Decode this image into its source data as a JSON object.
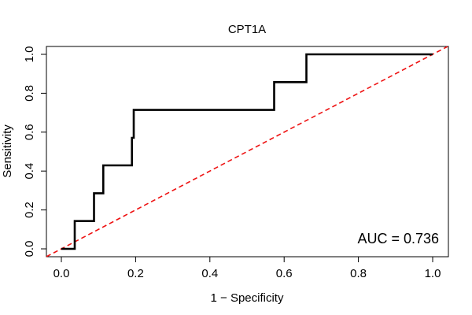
{
  "chart_data": {
    "type": "line",
    "title": "CPT1A",
    "xlabel": "1 − Specificity",
    "ylabel": "Sensitivity",
    "xlim": [
      0,
      1
    ],
    "ylim": [
      0,
      1
    ],
    "xticks": [
      "0.0",
      "0.2",
      "0.4",
      "0.6",
      "0.8",
      "1.0"
    ],
    "yticks": [
      "0.0",
      "0.2",
      "0.4",
      "0.6",
      "0.8",
      "1.0"
    ],
    "annotation": "AUC = 0.736",
    "series": [
      {
        "name": "ROC curve",
        "color": "#000000",
        "x": [
          0.0,
          0.036,
          0.036,
          0.036,
          0.088,
          0.088,
          0.113,
          0.113,
          0.19,
          0.19,
          0.195,
          0.195,
          0.573,
          0.573,
          0.66,
          0.66,
          1.0
        ],
        "y": [
          0.0,
          0.0,
          0.02,
          0.143,
          0.143,
          0.286,
          0.286,
          0.429,
          0.429,
          0.571,
          0.571,
          0.714,
          0.714,
          0.857,
          0.857,
          1.0,
          1.0
        ]
      },
      {
        "name": "Chance line",
        "color": "#ee1111",
        "dashed": true,
        "x": [
          0,
          1
        ],
        "y": [
          0,
          1
        ]
      }
    ]
  }
}
